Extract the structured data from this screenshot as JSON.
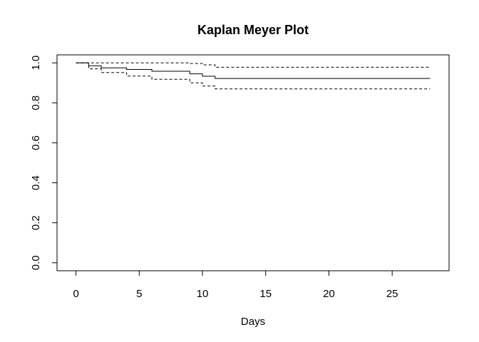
{
  "chart_data": {
    "type": "line",
    "title": "Kaplan Meyer Plot",
    "xlabel": "Days",
    "ylabel": "",
    "xlim": [
      -1.5,
      29.5
    ],
    "ylim": [
      -0.04,
      1.04
    ],
    "xticks": [
      0,
      5,
      10,
      15,
      20,
      25
    ],
    "yticks": [
      0.0,
      0.2,
      0.4,
      0.6,
      0.8,
      1.0
    ],
    "xtick_labels": [
      "0",
      "5",
      "10",
      "15",
      "20",
      "25"
    ],
    "ytick_labels": [
      "0.0",
      "0.2",
      "0.4",
      "0.6",
      "0.8",
      "1.0"
    ],
    "grid": false,
    "step": true,
    "series": [
      {
        "role": "estimate",
        "line_style": "solid",
        "x": [
          0,
          1,
          2,
          4,
          6,
          9,
          10,
          11,
          28
        ],
        "y": [
          1.0,
          0.985,
          0.975,
          0.967,
          0.958,
          0.945,
          0.933,
          0.922,
          0.922
        ]
      },
      {
        "role": "upper-ci",
        "line_style": "dashed",
        "x": [
          0,
          9,
          10,
          11,
          28
        ],
        "y": [
          1.0,
          0.997,
          0.99,
          0.978,
          0.978
        ]
      },
      {
        "role": "lower-ci",
        "line_style": "dashed",
        "x": [
          0,
          1,
          2,
          4,
          6,
          9,
          10,
          11,
          28
        ],
        "y": [
          1.0,
          0.97,
          0.952,
          0.934,
          0.918,
          0.9,
          0.884,
          0.87,
          0.87
        ]
      }
    ]
  }
}
